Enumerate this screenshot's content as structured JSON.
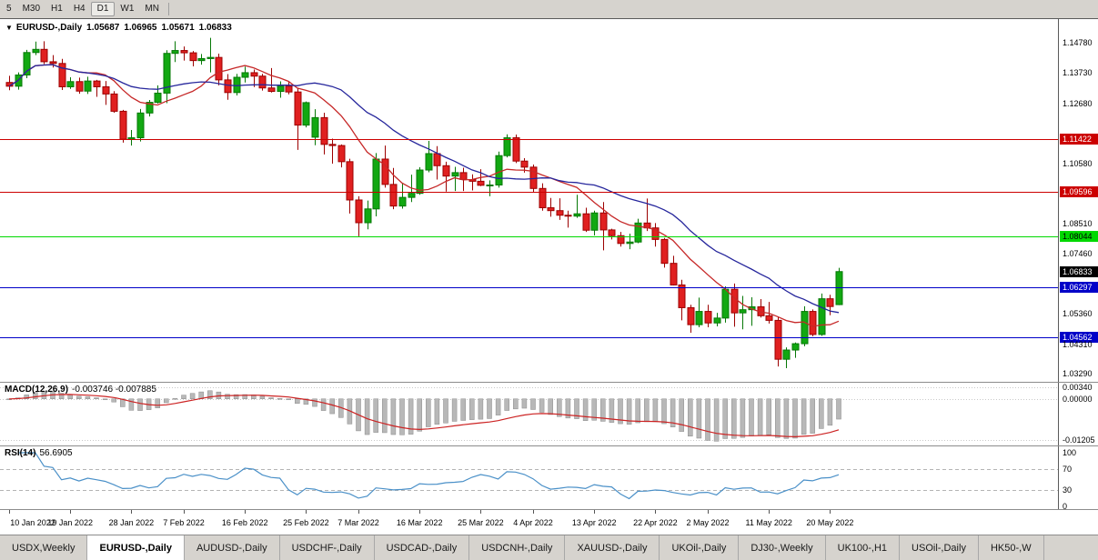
{
  "toolbar": {
    "timeframes": [
      "5",
      "M30",
      "H1",
      "H4",
      "D1",
      "W1",
      "MN"
    ],
    "active": "D1"
  },
  "chart_header": {
    "marker_icon": "▼",
    "symbol_period": "EURUSD-,Daily",
    "open": "1.05687",
    "high": "1.06965",
    "low": "1.05671",
    "close": "1.06833"
  },
  "chart_data": {
    "type": "candlestick",
    "title": "EURUSD-,Daily",
    "ohlc_order": "open,high,low,close",
    "visible_price_range": [
      1.0329,
      1.156
    ],
    "candles": [
      [
        1.134,
        1.1363,
        1.1313,
        1.1327
      ],
      [
        1.1327,
        1.1375,
        1.1315,
        1.1366
      ],
      [
        1.1366,
        1.1453,
        1.1355,
        1.1444
      ],
      [
        1.1444,
        1.1482,
        1.1435,
        1.1455
      ],
      [
        1.1455,
        1.1483,
        1.1404,
        1.1412
      ],
      [
        1.1412,
        1.1435,
        1.1392,
        1.1406
      ],
      [
        1.1406,
        1.1422,
        1.1314,
        1.1325
      ],
      [
        1.1325,
        1.1358,
        1.1318,
        1.1343
      ],
      [
        1.1343,
        1.1357,
        1.1301,
        1.131
      ],
      [
        1.131,
        1.136,
        1.13,
        1.1345
      ],
      [
        1.1345,
        1.1349,
        1.129,
        1.1325
      ],
      [
        1.1325,
        1.1345,
        1.1262,
        1.13
      ],
      [
        1.13,
        1.131,
        1.1235,
        1.124
      ],
      [
        1.124,
        1.1245,
        1.1131,
        1.1143
      ],
      [
        1.1143,
        1.1175,
        1.1121,
        1.1148
      ],
      [
        1.1148,
        1.1248,
        1.1135,
        1.1234
      ],
      [
        1.1234,
        1.1279,
        1.1222,
        1.1271
      ],
      [
        1.1271,
        1.133,
        1.1267,
        1.1303
      ],
      [
        1.1303,
        1.1452,
        1.1268,
        1.1441
      ],
      [
        1.1441,
        1.1483,
        1.1411,
        1.1451
      ],
      [
        1.1451,
        1.1465,
        1.1416,
        1.1443
      ],
      [
        1.1443,
        1.1449,
        1.1396,
        1.1416
      ],
      [
        1.1416,
        1.1439,
        1.1402,
        1.1423
      ],
      [
        1.1423,
        1.1495,
        1.1375,
        1.1427
      ],
      [
        1.1427,
        1.144,
        1.133,
        1.1349
      ],
      [
        1.1349,
        1.1369,
        1.128,
        1.1305
      ],
      [
        1.1305,
        1.137,
        1.1295,
        1.1358
      ],
      [
        1.1358,
        1.1395,
        1.134,
        1.1374
      ],
      [
        1.1374,
        1.1385,
        1.1324,
        1.1362
      ],
      [
        1.1362,
        1.137,
        1.1312,
        1.1321
      ],
      [
        1.1321,
        1.139,
        1.1305,
        1.1309
      ],
      [
        1.1309,
        1.1344,
        1.1287,
        1.1327
      ],
      [
        1.1327,
        1.1342,
        1.1299,
        1.1307
      ],
      [
        1.1307,
        1.132,
        1.1106,
        1.1192
      ],
      [
        1.1192,
        1.1274,
        1.1184,
        1.127
      ],
      [
        1.115,
        1.1247,
        1.1122,
        1.1218
      ],
      [
        1.1218,
        1.1235,
        1.109,
        1.1125
      ],
      [
        1.1125,
        1.1145,
        1.1058,
        1.1121
      ],
      [
        1.1121,
        1.1125,
        1.1045,
        1.1065
      ],
      [
        1.1065,
        1.1075,
        1.0885,
        1.0932
      ],
      [
        1.0932,
        1.0945,
        1.0806,
        1.0853
      ],
      [
        1.0853,
        1.093,
        1.083,
        1.0901
      ],
      [
        1.0901,
        1.1095,
        1.0875,
        1.1074
      ],
      [
        1.1074,
        1.1121,
        1.0975,
        1.0986
      ],
      [
        1.0986,
        1.1043,
        1.09,
        1.0911
      ],
      [
        1.0911,
        1.099,
        1.0902,
        1.0941
      ],
      [
        1.0941,
        1.102,
        1.0925,
        1.0955
      ],
      [
        1.0955,
        1.1046,
        1.095,
        1.1036
      ],
      [
        1.1036,
        1.1137,
        1.1028,
        1.1093
      ],
      [
        1.1093,
        1.1119,
        1.1003,
        1.1051
      ],
      [
        1.1051,
        1.1065,
        1.0961,
        1.1015
      ],
      [
        1.1015,
        1.1047,
        1.0963,
        1.1027
      ],
      [
        1.1027,
        1.1044,
        1.0963,
        1.1003
      ],
      [
        1.1003,
        1.1021,
        1.0965,
        1.0997
      ],
      [
        1.0997,
        1.1039,
        1.098,
        1.0983
      ],
      [
        1.0983,
        1.1,
        1.0945,
        1.0984
      ],
      [
        1.0984,
        1.11,
        1.0975,
        1.1086
      ],
      [
        1.1086,
        1.116,
        1.108,
        1.1148
      ],
      [
        1.1148,
        1.1159,
        1.106,
        1.1067
      ],
      [
        1.1067,
        1.1077,
        1.1027,
        1.1046
      ],
      [
        1.1046,
        1.1055,
        1.096,
        1.0972
      ],
      [
        1.0972,
        1.099,
        1.0895,
        1.0905
      ],
      [
        1.0905,
        1.0939,
        1.0874,
        1.0895
      ],
      [
        1.0895,
        1.0938,
        1.0863,
        1.0879
      ],
      [
        1.0879,
        1.0895,
        1.0836,
        1.0876
      ],
      [
        1.0876,
        1.095,
        1.087,
        1.0884
      ],
      [
        1.0884,
        1.0905,
        1.0821,
        1.0827
      ],
      [
        1.0827,
        1.0895,
        1.0809,
        1.0887
      ],
      [
        1.0887,
        1.0925,
        1.0757,
        1.0828
      ],
      [
        1.0828,
        1.0832,
        1.0795,
        1.0808
      ],
      [
        1.0808,
        1.0821,
        1.077,
        1.0781
      ],
      [
        1.0781,
        1.0815,
        1.0761,
        1.0786
      ],
      [
        1.0786,
        1.0867,
        1.0782,
        1.0852
      ],
      [
        1.0852,
        1.0937,
        1.0824,
        1.0835
      ],
      [
        1.0835,
        1.0852,
        1.077,
        1.0795
      ],
      [
        1.0795,
        1.08,
        1.0697,
        1.0712
      ],
      [
        1.0712,
        1.0738,
        1.0635,
        1.0637
      ],
      [
        1.0637,
        1.0655,
        1.0514,
        1.0558
      ],
      [
        1.0558,
        1.0568,
        1.0471,
        1.0499
      ],
      [
        1.0499,
        1.0593,
        1.049,
        1.0545
      ],
      [
        1.0545,
        1.0568,
        1.049,
        1.0505
      ],
      [
        1.0505,
        1.054,
        1.0493,
        1.0522
      ],
      [
        1.0522,
        1.0632,
        1.0506,
        1.0622
      ],
      [
        1.0622,
        1.0642,
        1.0492,
        1.054
      ],
      [
        1.054,
        1.0599,
        1.0483,
        1.0551
      ],
      [
        1.0551,
        1.0594,
        1.0495,
        1.0561
      ],
      [
        1.0561,
        1.0588,
        1.0524,
        1.053
      ],
      [
        1.053,
        1.0578,
        1.0503,
        1.0514
      ],
      [
        1.0514,
        1.0525,
        1.0354,
        1.0379
      ],
      [
        1.0379,
        1.042,
        1.0348,
        1.0411
      ],
      [
        1.0411,
        1.0437,
        1.0384,
        1.0433
      ],
      [
        1.0433,
        1.0563,
        1.0424,
        1.0545
      ],
      [
        1.0545,
        1.0552,
        1.0459,
        1.0465
      ],
      [
        1.0465,
        1.0607,
        1.046,
        1.0589
      ],
      [
        1.0589,
        1.0603,
        1.0532,
        1.0562
      ],
      [
        1.05687,
        1.06965,
        1.05671,
        1.06833
      ]
    ],
    "moving_averages": [
      {
        "name": "fast-ma",
        "period": 10,
        "color": "#c62828"
      },
      {
        "name": "slow-ma",
        "period": 21,
        "color": "#26269c"
      }
    ],
    "horizontal_lines": [
      {
        "price": 1.11422,
        "color": "#cc0000"
      },
      {
        "price": 1.09596,
        "color": "#cc0000"
      },
      {
        "price": 1.08044,
        "color": "#00d800"
      },
      {
        "price": 1.06297,
        "color": "#0000c8"
      },
      {
        "price": 1.04562,
        "color": "#0000c8"
      }
    ],
    "y_tick_labels": [
      {
        "text": "1.14780",
        "value": 1.1478,
        "style": "plain"
      },
      {
        "text": "1.13730",
        "value": 1.1373,
        "style": "plain"
      },
      {
        "text": "1.12680",
        "value": 1.1268,
        "style": "plain"
      },
      {
        "text": "1.11422",
        "value": 1.11422,
        "style": "red"
      },
      {
        "text": "1.10580",
        "value": 1.1058,
        "style": "plain"
      },
      {
        "text": "1.09596",
        "value": 1.09596,
        "style": "red"
      },
      {
        "text": "1.08510",
        "value": 1.0851,
        "style": "plain"
      },
      {
        "text": "1.08044",
        "value": 1.08044,
        "style": "green"
      },
      {
        "text": "1.07460",
        "value": 1.0746,
        "style": "plain"
      },
      {
        "text": "1.06833",
        "value": 1.06833,
        "style": "black"
      },
      {
        "text": "1.06297",
        "value": 1.06297,
        "style": "blue"
      },
      {
        "text": "1.05360",
        "value": 1.0536,
        "style": "plain"
      },
      {
        "text": "1.04562",
        "value": 1.04562,
        "style": "blue"
      },
      {
        "text": "1.04310",
        "value": 1.0431,
        "style": "plain"
      },
      {
        "text": "1.03290",
        "value": 1.0329,
        "style": "plain"
      }
    ],
    "x_tick_labels": [
      {
        "text": "10 Jan 2022",
        "index": 0
      },
      {
        "text": "19 Jan 2022",
        "index": 7
      },
      {
        "text": "28 Jan 2022",
        "index": 14
      },
      {
        "text": "7 Feb 2022",
        "index": 20
      },
      {
        "text": "16 Feb 2022",
        "index": 27
      },
      {
        "text": "25 Feb 2022",
        "index": 34
      },
      {
        "text": "7 Mar 2022",
        "index": 40
      },
      {
        "text": "16 Mar 2022",
        "index": 47
      },
      {
        "text": "25 Mar 2022",
        "index": 54
      },
      {
        "text": "4 Apr 2022",
        "index": 60
      },
      {
        "text": "13 Apr 2022",
        "index": 67
      },
      {
        "text": "22 Apr 2022",
        "index": 74
      },
      {
        "text": "2 May 2022",
        "index": 80
      },
      {
        "text": "11 May 2022",
        "index": 87
      },
      {
        "text": "20 May 2022",
        "index": 94
      }
    ],
    "macd": {
      "label": "MACD(12,26,9)",
      "values_text": "-0.003746 -0.007885",
      "fast": 12,
      "slow": 26,
      "signal_period": 9,
      "histogram_color": "#b8b8b8",
      "histogram_border": "#8a8a8a",
      "signal_color": "#cc2222",
      "axis": [
        {
          "text": "0.00340",
          "value": 0.0034
        },
        {
          "text": "0.00000",
          "value": 0
        },
        {
          "text": "-0.01205",
          "value": -0.01205
        }
      ]
    },
    "rsi": {
      "label": "RSI(14)",
      "value_text": "56.6905",
      "period": 14,
      "levels": [
        70,
        30
      ],
      "line_color": "#4a90c8",
      "axis": [
        {
          "text": "100",
          "value": 100
        },
        {
          "text": "70",
          "value": 70
        },
        {
          "text": "30",
          "value": 30
        },
        {
          "text": "0",
          "value": 0
        }
      ]
    }
  },
  "tabs": {
    "items": [
      "USDX,Weekly",
      "EURUSD-,Daily",
      "AUDUSD-,Daily",
      "USDCHF-,Daily",
      "USDCAD-,Daily",
      "USDCNH-,Daily",
      "XAUUSD-,Daily",
      "UKOil-,Daily",
      "DJ30-,Weekly",
      "UK100-,H1",
      "USOil-,Daily",
      "HK50-,W"
    ],
    "active": "EURUSD-,Daily"
  },
  "colors": {
    "candle_up": "#12a812",
    "candle_up_border": "#067806",
    "candle_down": "#e02020",
    "candle_down_border": "#9c0000",
    "toolbar_bg": "#d6d3ce",
    "panel_bg": "#ffffff"
  }
}
